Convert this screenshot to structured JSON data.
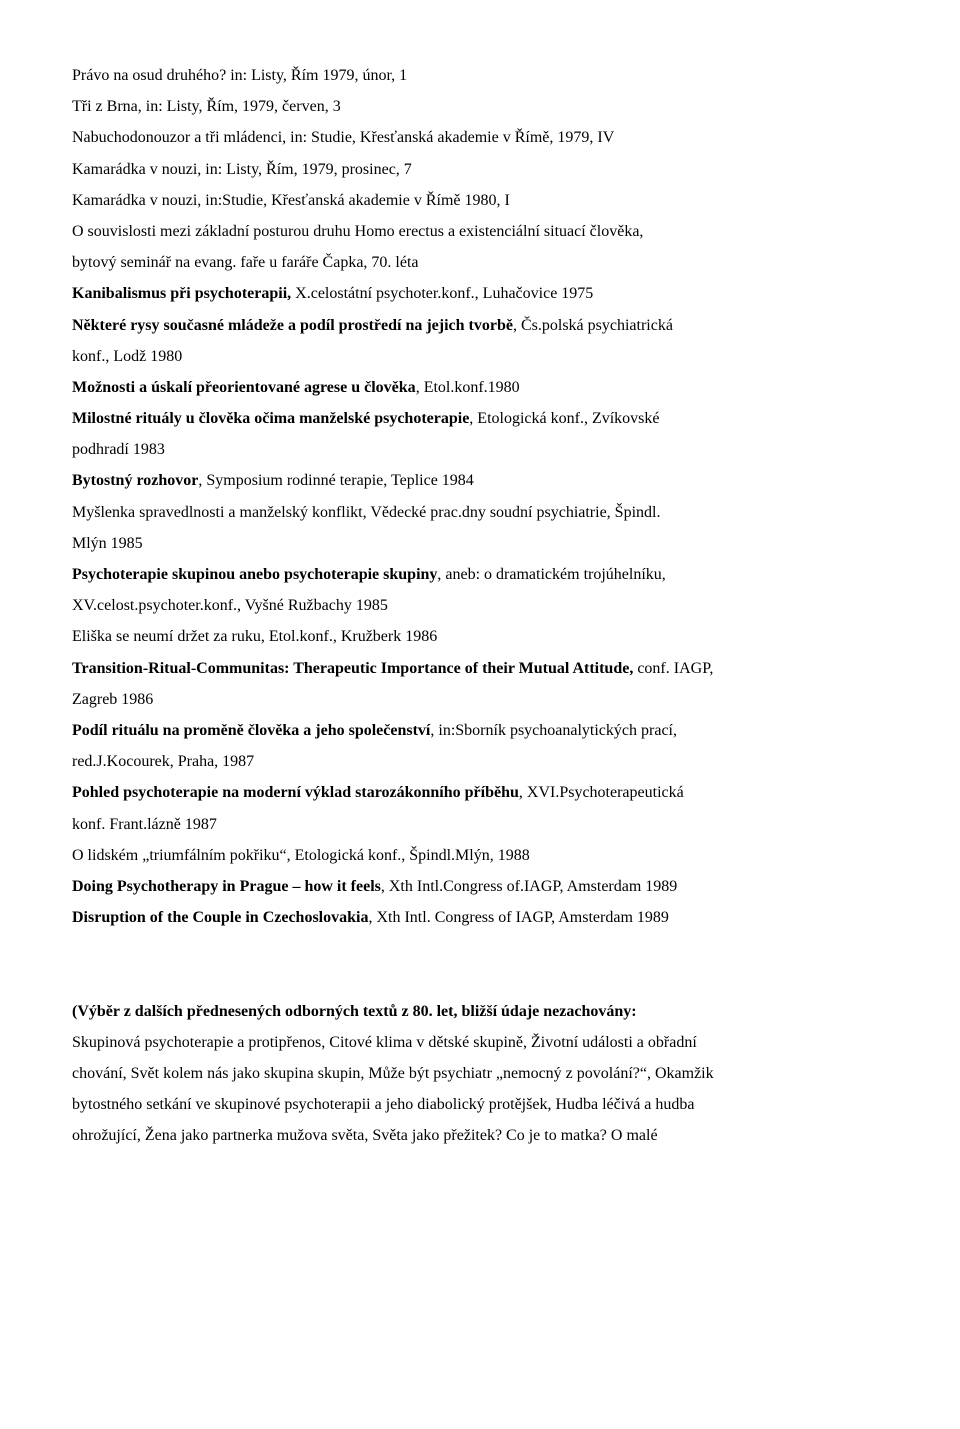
{
  "lines": [
    {
      "text": "Právo na osud druhého? in: Listy, Řím 1979, únor, 1",
      "bold": false,
      "justify": false
    },
    {
      "text": "Tři z Brna, in: Listy, Řím, 1979, červen, 3",
      "bold": false,
      "justify": false
    },
    {
      "text": "Nabuchodonouzor a tři mládenci, in: Studie, Křesťanská akademie v Římě, 1979, IV",
      "bold": false,
      "justify": false
    },
    {
      "text": "Kamarádka v nouzi, in: Listy, Řím, 1979, prosinec, 7",
      "bold": false,
      "justify": false
    },
    {
      "text": "Kamarádka v nouzi, in:Studie, Křesťanská akademie v Římě 1980, I",
      "bold": false,
      "justify": false
    },
    {
      "text": "O souvislosti mezi základní posturou druhu Homo erectus a existenciální situací člověka,",
      "bold": false,
      "justify": false
    },
    {
      "text": "bytový seminář na evang. faře u faráře Čapka, 70. léta",
      "bold": false,
      "justify": false
    },
    {
      "spans": [
        {
          "text": "Kanibalismus při psychoterapii, ",
          "bold": true
        },
        {
          "text": "X.celostátní psychoter.konf., Luhačovice 1975",
          "bold": false
        }
      ],
      "justify": false
    },
    {
      "spans": [
        {
          "text": "Některé rysy současné mládeže a podíl prostředí na jejich tvorbě",
          "bold": true
        },
        {
          "text": ", Čs.polská psychiatrická",
          "bold": false
        }
      ],
      "justify": false
    },
    {
      "text": "konf., Lodž 1980",
      "bold": false,
      "justify": false
    },
    {
      "spans": [
        {
          "text": "Možnosti a úskalí přeorientované agrese u člověka",
          "bold": true
        },
        {
          "text": ", Etol.konf.1980",
          "bold": false
        }
      ],
      "justify": false
    },
    {
      "spans": [
        {
          "text": "Milostné rituály u člověka očima manželské psychoterapie",
          "bold": true
        },
        {
          "text": ", Etologická konf., Zvíkovské",
          "bold": false
        }
      ],
      "justify": false
    },
    {
      "text": "podhradí 1983",
      "bold": false,
      "justify": false
    },
    {
      "spans": [
        {
          "text": "Bytostný rozhovor",
          "bold": true
        },
        {
          "text": ", Symposium rodinné terapie, Teplice 1984",
          "bold": false
        }
      ],
      "justify": false
    },
    {
      "text": "Myšlenka spravedlnosti a manželský konflikt, Vědecké prac.dny soudní psychiatrie, Špindl.",
      "bold": false,
      "justify": false
    },
    {
      "text": "Mlýn 1985",
      "bold": false,
      "justify": false
    },
    {
      "spans": [
        {
          "text": "Psychoterapie skupinou anebo psychoterapie skupiny",
          "bold": true
        },
        {
          "text": ", aneb: o dramatickém trojúhelníku,",
          "bold": false
        }
      ],
      "justify": true
    },
    {
      "text": "XV.celost.psychoter.konf., Vyšné Ružbachy 1985",
      "bold": false,
      "justify": false
    },
    {
      "text": "Eliška se neumí držet za ruku, Etol.konf., Kružberk 1986",
      "bold": false,
      "justify": false
    },
    {
      "spans": [
        {
          "text": "Transition-Ritual-Communitas: Therapeutic Importance of their Mutual Attitude, ",
          "bold": true
        },
        {
          "text": "conf. IAGP,",
          "bold": false
        }
      ],
      "justify": true
    },
    {
      "text": "Zagreb 1986",
      "bold": false,
      "justify": false
    },
    {
      "spans": [
        {
          "text": "Podíl rituálu na proměně člověka a jeho společenství",
          "bold": true
        },
        {
          "text": ", in:Sborník psychoanalytických prací,",
          "bold": false
        }
      ],
      "justify": true
    },
    {
      "text": "red.J.Kocourek, Praha, 1987",
      "bold": false,
      "justify": false
    },
    {
      "spans": [
        {
          "text": "Pohled psychoterapie na moderní výklad starozákonního příběhu",
          "bold": true
        },
        {
          "text": ", XVI.Psychoterapeutická",
          "bold": false
        }
      ],
      "justify": true
    },
    {
      "text": "konf. Frant.lázně 1987",
      "bold": false,
      "justify": false
    },
    {
      "text": "O lidském „triumfálním pokřiku“, Etologická konf., Špindl.Mlýn, 1988",
      "bold": false,
      "justify": false
    },
    {
      "spans": [
        {
          "text": "Doing Psychotherapy in Prague – how it feels",
          "bold": true
        },
        {
          "text": ", Xth Intl.Congress of.IAGP, Amsterdam 1989",
          "bold": false
        }
      ],
      "justify": false
    },
    {
      "spans": [
        {
          "text": "Disruption of the Couple in Czechoslovakia",
          "bold": true
        },
        {
          "text": ", Xth Intl. Congress of IAGP, Amsterdam 1989",
          "bold": false
        }
      ],
      "justify": false
    },
    {
      "text": "",
      "bold": false,
      "justify": false
    },
    {
      "text": "",
      "bold": false,
      "justify": false
    },
    {
      "text": "(Výběr z dalších přednesených odborných textů z 80. let, bližší údaje nezachovány:",
      "bold": true,
      "justify": false
    },
    {
      "text": "Skupinová psychoterapie a protipřenos, Citové klima v dětské skupině, Životní události a obřadní",
      "bold": false,
      "justify": true
    },
    {
      "text": "chování, Svět kolem nás jako skupina skupin, Může být psychiatr „nemocný z povolání?“, Okamžik",
      "bold": false,
      "justify": true
    },
    {
      "text": "bytostného setkání ve skupinové psychoterapii a jeho diabolický protějšek, Hudba léčivá a hudba",
      "bold": false,
      "justify": true
    },
    {
      "text": "ohrožující, Žena jako partnerka mužova světa, Světa jako přežitek?  Co je to matka?  O malé",
      "bold": false,
      "justify": true
    }
  ]
}
